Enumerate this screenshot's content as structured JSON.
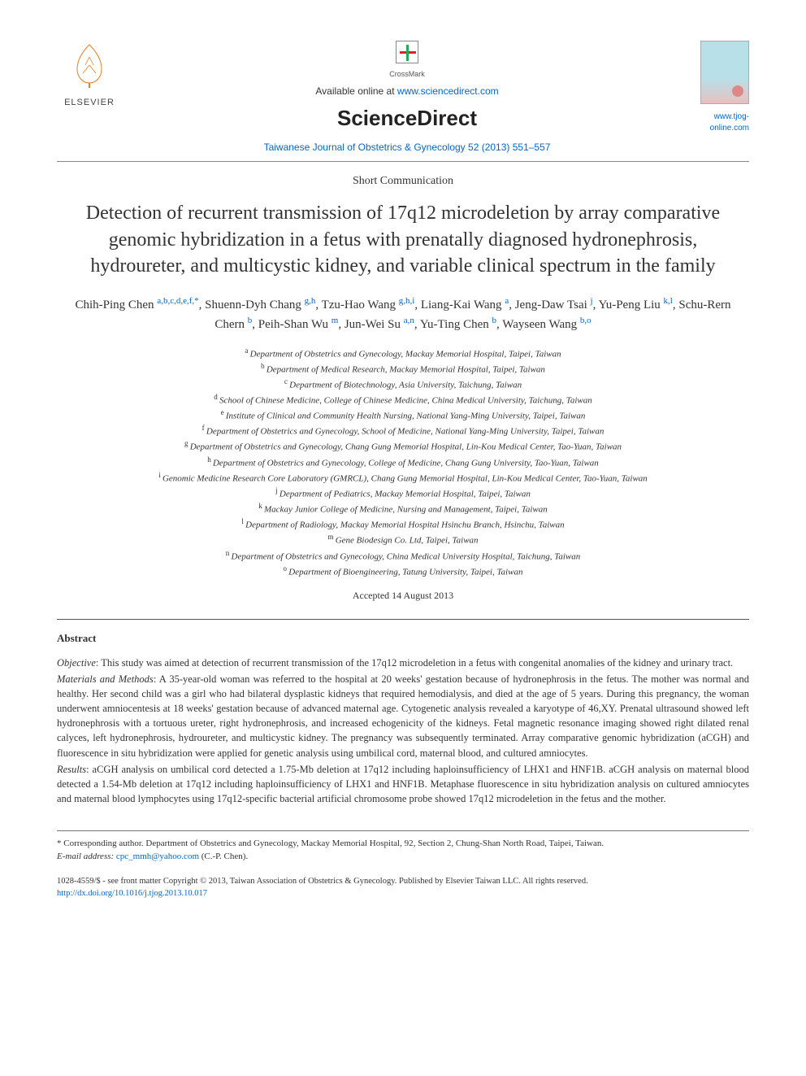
{
  "header": {
    "publisher_logo_text": "ELSEVIER",
    "crossmark_label": "CrossMark",
    "available_prefix": "Available online at ",
    "available_url": "www.sciencedirect.com",
    "platform_logo": "ScienceDirect",
    "journal_citation": "Taiwanese Journal of Obstetrics & Gynecology 52 (2013) 551–557",
    "journal_site": "www.tjog-online.com"
  },
  "article": {
    "doc_type": "Short Communication",
    "title": "Detection of recurrent transmission of 17q12 microdeletion by array comparative genomic hybridization in a fetus with prenatally diagnosed hydronephrosis, hydroureter, and multicystic kidney, and variable clinical spectrum in the family",
    "authors_html_parts": [
      {
        "name": "Chih-Ping Chen",
        "sup": "a,b,c,d,e,f,*"
      },
      {
        "name": "Shuenn-Dyh Chang",
        "sup": "g,h"
      },
      {
        "name": "Tzu-Hao Wang",
        "sup": "g,h,i"
      },
      {
        "name": "Liang-Kai Wang",
        "sup": "a"
      },
      {
        "name": "Jeng-Daw Tsai",
        "sup": "j"
      },
      {
        "name": "Yu-Peng Liu",
        "sup": "k,l"
      },
      {
        "name": "Schu-Rern Chern",
        "sup": "b"
      },
      {
        "name": "Peih-Shan Wu",
        "sup": "m"
      },
      {
        "name": "Jun-Wei Su",
        "sup": "a,n"
      },
      {
        "name": "Yu-Ting Chen",
        "sup": "b"
      },
      {
        "name": "Wayseen Wang",
        "sup": "b,o"
      }
    ],
    "affiliations": [
      {
        "key": "a",
        "text": "Department of Obstetrics and Gynecology, Mackay Memorial Hospital, Taipei, Taiwan"
      },
      {
        "key": "b",
        "text": "Department of Medical Research, Mackay Memorial Hospital, Taipei, Taiwan"
      },
      {
        "key": "c",
        "text": "Department of Biotechnology, Asia University, Taichung, Taiwan"
      },
      {
        "key": "d",
        "text": "School of Chinese Medicine, College of Chinese Medicine, China Medical University, Taichung, Taiwan"
      },
      {
        "key": "e",
        "text": "Institute of Clinical and Community Health Nursing, National Yang-Ming University, Taipei, Taiwan"
      },
      {
        "key": "f",
        "text": "Department of Obstetrics and Gynecology, School of Medicine, National Yang-Ming University, Taipei, Taiwan"
      },
      {
        "key": "g",
        "text": "Department of Obstetrics and Gynecology, Chang Gung Memorial Hospital, Lin-Kou Medical Center, Tao-Yuan, Taiwan"
      },
      {
        "key": "h",
        "text": "Department of Obstetrics and Gynecology, College of Medicine, Chang Gung University, Tao-Yuan, Taiwan"
      },
      {
        "key": "i",
        "text": "Genomic Medicine Research Core Laboratory (GMRCL), Chang Gung Memorial Hospital, Lin-Kou Medical Center, Tao-Yuan, Taiwan"
      },
      {
        "key": "j",
        "text": "Department of Pediatrics, Mackay Memorial Hospital, Taipei, Taiwan"
      },
      {
        "key": "k",
        "text": "Mackay Junior College of Medicine, Nursing and Management, Taipei, Taiwan"
      },
      {
        "key": "l",
        "text": "Department of Radiology, Mackay Memorial Hospital Hsinchu Branch, Hsinchu, Taiwan"
      },
      {
        "key": "m",
        "text": "Gene Biodesign Co. Ltd, Taipei, Taiwan"
      },
      {
        "key": "n",
        "text": "Department of Obstetrics and Gynecology, China Medical University Hospital, Taichung, Taiwan"
      },
      {
        "key": "o",
        "text": "Department of Bioengineering, Tatung University, Taipei, Taiwan"
      }
    ],
    "accepted": "Accepted 14 August 2013"
  },
  "abstract": {
    "heading": "Abstract",
    "sections": [
      {
        "label": "Objective",
        "text": ": This study was aimed at detection of recurrent transmission of the 17q12 microdeletion in a fetus with congenital anomalies of the kidney and urinary tract."
      },
      {
        "label": "Materials and Methods",
        "text": ": A 35-year-old woman was referred to the hospital at 20 weeks' gestation because of hydronephrosis in the fetus. The mother was normal and healthy. Her second child was a girl who had bilateral dysplastic kidneys that required hemodialysis, and died at the age of 5 years. During this pregnancy, the woman underwent amniocentesis at 18 weeks' gestation because of advanced maternal age. Cytogenetic analysis revealed a karyotype of 46,XY. Prenatal ultrasound showed left hydronephrosis with a tortuous ureter, right hydronephrosis, and increased echogenicity of the kidneys. Fetal magnetic resonance imaging showed right dilated renal calyces, left hydronephrosis, hydroureter, and multicystic kidney. The pregnancy was subsequently terminated. Array comparative genomic hybridization (aCGH) and fluorescence in situ hybridization were applied for genetic analysis using umbilical cord, maternal blood, and cultured amniocytes."
      },
      {
        "label": "Results",
        "text": ": aCGH analysis on umbilical cord detected a 1.75-Mb deletion at 17q12 including haploinsufficiency of LHX1 and HNF1B. aCGH analysis on maternal blood detected a 1.54-Mb deletion at 17q12 including haploinsufficiency of LHX1 and HNF1B. Metaphase fluorescence in situ hybridization analysis on cultured amniocytes and maternal blood lymphocytes using 17q12-specific bacterial artificial chromosome probe showed 17q12 microdeletion in the fetus and the mother."
      }
    ]
  },
  "footer": {
    "corresponding": "* Corresponding author. Department of Obstetrics and Gynecology, Mackay Memorial Hospital, 92, Section 2, Chung-Shan North Road, Taipei, Taiwan.",
    "email_label": "E-mail address: ",
    "email": "cpc_mmh@yahoo.com",
    "email_suffix": " (C.-P. Chen).",
    "issn_line": "1028-4559/$ - see front matter Copyright © 2013, Taiwan Association of Obstetrics & Gynecology. Published by Elsevier Taiwan LLC. All rights reserved.",
    "doi": "http://dx.doi.org/10.1016/j.tjog.2013.10.017"
  },
  "colors": {
    "link": "#0066cc",
    "text": "#333333",
    "rule": "#888888"
  }
}
